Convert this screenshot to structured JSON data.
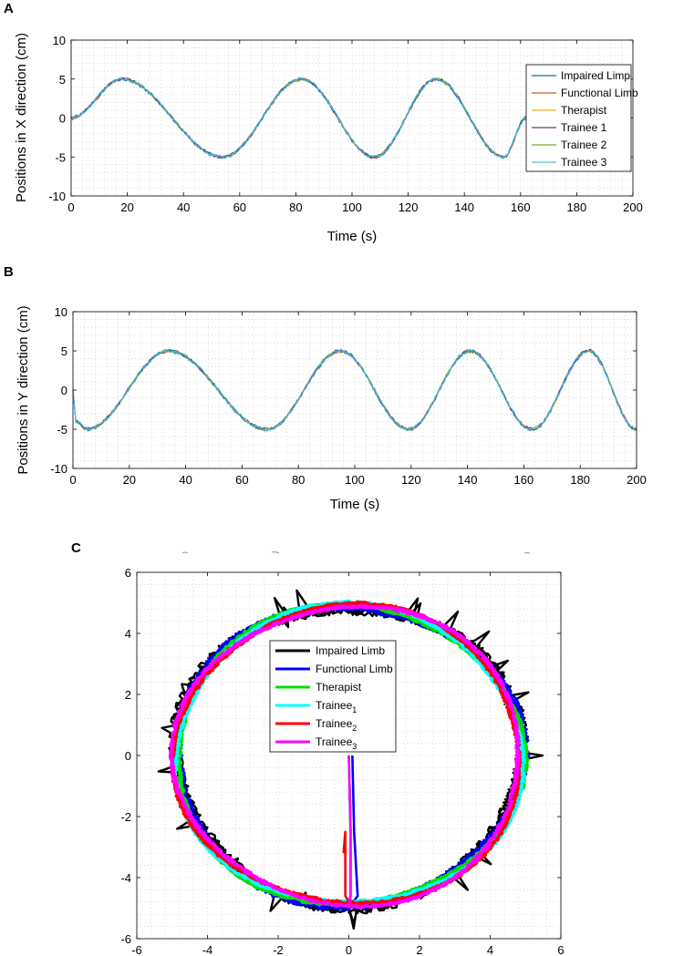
{
  "chart_data": [
    {
      "panel": "A",
      "type": "line",
      "xlabel": "Time (s)",
      "ylabel": "Positions in X direction (cm)",
      "xlim": [
        0,
        200
      ],
      "ylim": [
        -10,
        10
      ],
      "xticks": [
        0,
        20,
        40,
        60,
        80,
        100,
        120,
        140,
        160,
        180,
        200
      ],
      "yticks": [
        -10,
        -5,
        0,
        5,
        10
      ],
      "grid": true,
      "legend_position": "top-right",
      "series": [
        {
          "name": "Impaired Limp",
          "color": "#0072BD"
        },
        {
          "name": "Functional Limb",
          "color": "#D95319"
        },
        {
          "name": "Therapist",
          "color": "#EDB120"
        },
        {
          "name": "Trainee 1",
          "color": "#7E2F8E"
        },
        {
          "name": "Trainee 2",
          "color": "#77AC30"
        },
        {
          "name": "Trainee 3",
          "color": "#4DBEEE"
        }
      ],
      "trace": {
        "x": [
          0,
          18,
          54,
          82,
          108,
          130,
          154,
          162
        ],
        "y": [
          0,
          5,
          -5,
          5,
          -5,
          5,
          -5,
          0
        ]
      }
    },
    {
      "panel": "B",
      "type": "line",
      "xlabel": "Time (s)",
      "ylabel": "Positions in Y direction (cm)",
      "xlim": [
        0,
        200
      ],
      "ylim": [
        -10,
        10
      ],
      "xticks": [
        0,
        20,
        40,
        60,
        80,
        100,
        120,
        140,
        160,
        180,
        200
      ],
      "yticks": [
        -10,
        -5,
        0,
        5,
        10
      ],
      "grid": true,
      "series": [
        {
          "name": "Impaired Limp",
          "color": "#0072BD"
        },
        {
          "name": "Functional Limb",
          "color": "#D95319"
        },
        {
          "name": "Therapist",
          "color": "#EDB120"
        },
        {
          "name": "Trainee 1",
          "color": "#7E2F8E"
        },
        {
          "name": "Trainee 2",
          "color": "#77AC30"
        },
        {
          "name": "Trainee 3",
          "color": "#4DBEEE"
        }
      ],
      "trace": {
        "x": [
          0,
          1,
          5,
          34,
          69,
          95,
          119,
          141,
          163,
          183,
          200
        ],
        "y": [
          0,
          -4,
          -5,
          5,
          -5,
          5,
          -5,
          5,
          -5,
          5,
          -5
        ]
      }
    },
    {
      "panel": "C",
      "type": "line",
      "xlabel": "",
      "ylabel": "",
      "xlim": [
        -6,
        6
      ],
      "ylim": [
        -6,
        6
      ],
      "xticks": [
        -6,
        -4,
        -2,
        0,
        2,
        4,
        6
      ],
      "yticks": [
        -6,
        -4,
        -2,
        0,
        2,
        4,
        6
      ],
      "grid": true,
      "legend_position": "upper-center",
      "circle_radius": 4.9,
      "series": [
        {
          "name": "Impaired Limb",
          "sub": "",
          "color": "#000000"
        },
        {
          "name": "Functional Limb",
          "sub": "",
          "color": "#0000FF"
        },
        {
          "name": "Therapist",
          "sub": "",
          "color": "#00DD00"
        },
        {
          "name": "Trainee",
          "sub": "1",
          "color": "#00FFFF"
        },
        {
          "name": "Trainee",
          "sub": "2",
          "color": "#FF0000"
        },
        {
          "name": "Trainee",
          "sub": "3",
          "color": "#FF00FF"
        }
      ]
    }
  ]
}
